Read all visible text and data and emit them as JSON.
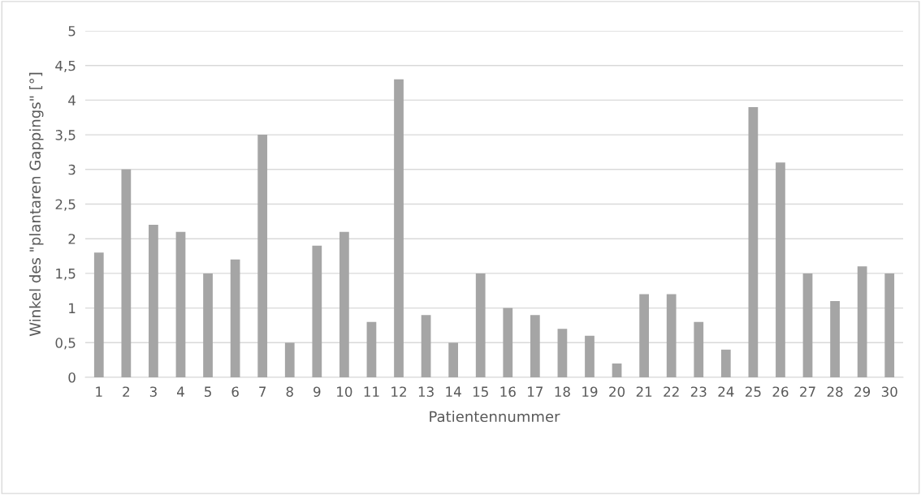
{
  "chart_data": {
    "type": "bar",
    "xlabel": "Patientennummer",
    "ylabel": "Winkel des \"plantaren Gappings\" [°]",
    "categories": [
      "1",
      "2",
      "3",
      "4",
      "5",
      "6",
      "7",
      "8",
      "9",
      "10",
      "11",
      "12",
      "13",
      "14",
      "15",
      "16",
      "17",
      "18",
      "19",
      "20",
      "21",
      "22",
      "23",
      "24",
      "25",
      "26",
      "27",
      "28",
      "29",
      "30"
    ],
    "values": [
      1.8,
      3.0,
      2.2,
      2.1,
      1.5,
      1.7,
      3.5,
      0.5,
      1.9,
      2.1,
      0.8,
      4.3,
      0.9,
      0.5,
      1.5,
      1.0,
      0.9,
      0.7,
      0.6,
      0.2,
      1.2,
      1.2,
      0.8,
      0.4,
      3.9,
      3.1,
      1.5,
      1.1,
      1.6,
      1.5
    ],
    "color": "#a5a5a5",
    "ylim": [
      0,
      5
    ],
    "yticks": [
      0,
      {
        "value": 0.5,
        "label": "0,5"
      },
      1,
      {
        "value": 1.5,
        "label": "1,5"
      },
      2,
      {
        "value": 2.5,
        "label": "2,5"
      },
      3,
      {
        "value": 3.5,
        "label": "3,5"
      },
      4,
      {
        "value": 4.5,
        "label": "4,5"
      },
      5
    ],
    "grid": "y"
  }
}
